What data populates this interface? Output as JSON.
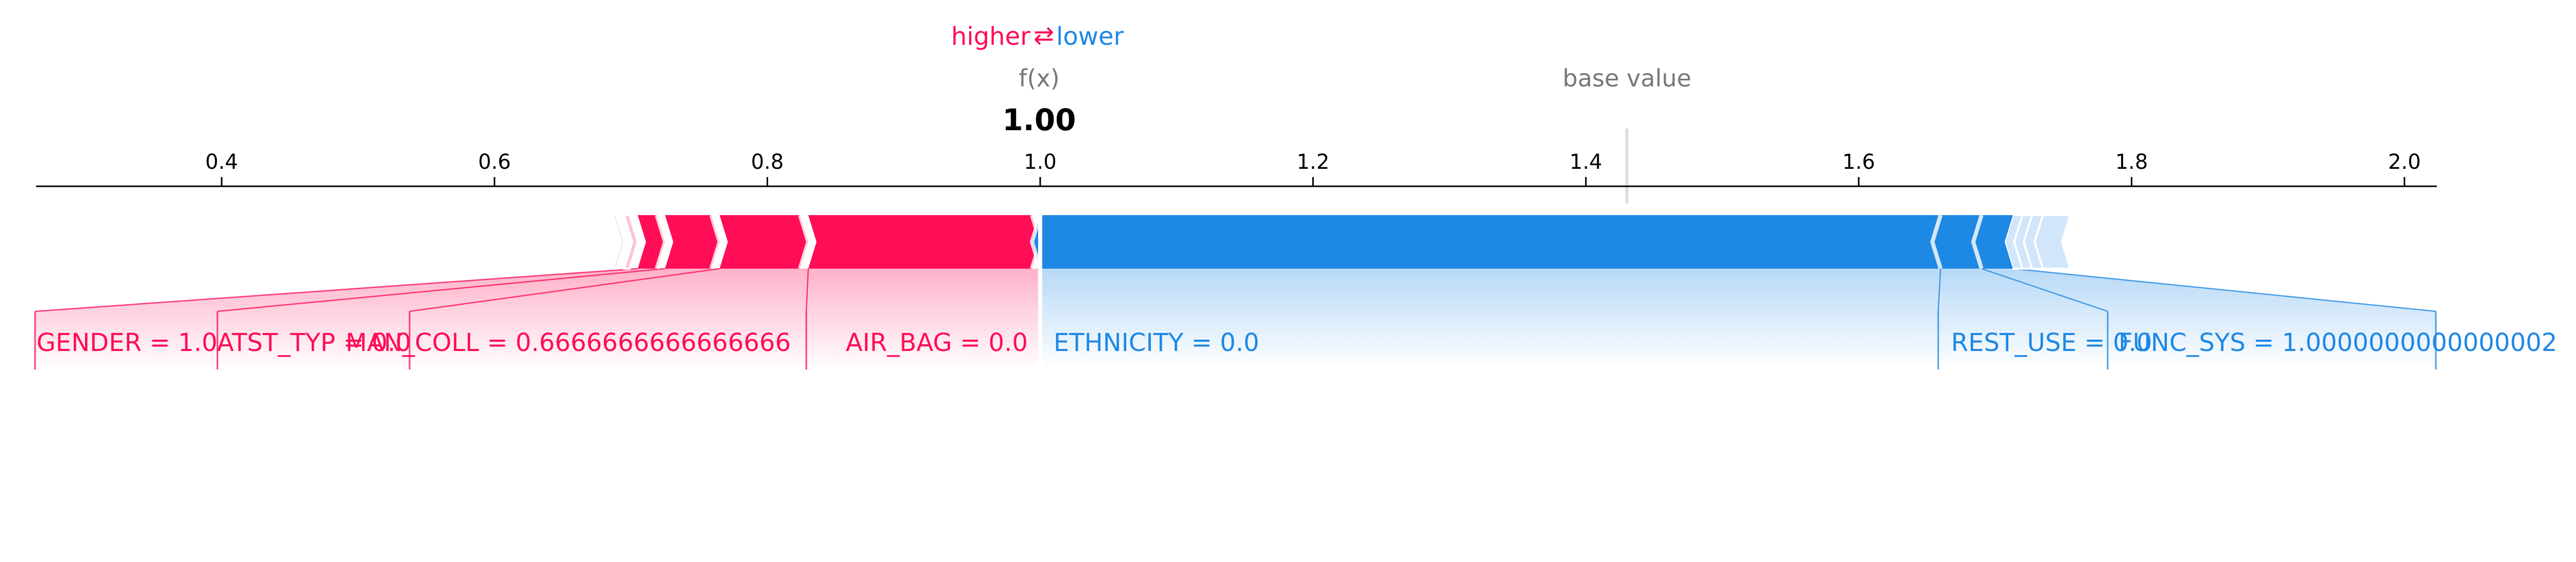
{
  "colors": {
    "higher": "#ff0d57",
    "lower": "#1e88e5",
    "axis": "#000000",
    "muted": "#777777",
    "higher_fill": "#ffc3d5",
    "lower_fill": "#d1e6fa"
  },
  "legend": {
    "higher": "higher",
    "arrows": "⇄",
    "lower": "lower"
  },
  "chart_data": {
    "type": "force_plot",
    "fx_label": "f(x)",
    "fx_value": 1.0,
    "fx_text": "1.00",
    "base_value_label": "base value",
    "base_value": 1.43,
    "xlim": [
      0.265,
      2.02
    ],
    "ticks": [
      0.4,
      0.6,
      0.8,
      1.0,
      1.2,
      1.4,
      1.6,
      1.8,
      2.0
    ],
    "tick_labels": [
      "0.4",
      "0.6",
      "0.8",
      "1.0",
      "1.2",
      "1.4",
      "1.6",
      "1.8",
      "2.0"
    ],
    "features_higher": [
      {
        "label": "AIR_BAG = 0.0",
        "start": 0.83,
        "end": 1.0
      },
      {
        "label": "MAN_COLL = 0.6666666666666666",
        "start": 0.765,
        "end": 0.83
      },
      {
        "label": "ATST_TYP = 0.0",
        "start": 0.725,
        "end": 0.765
      },
      {
        "label": "GENDER = 1.0",
        "start": 0.705,
        "end": 0.725
      }
    ],
    "features_higher_minor": [
      {
        "start": 0.695,
        "end": 0.705
      },
      {
        "start": 0.687,
        "end": 0.695
      },
      {
        "start": 0.68,
        "end": 0.687
      },
      {
        "start": 0.673,
        "end": 0.68
      }
    ],
    "features_lower": [
      {
        "label": "ETHNICITY  = 0.0",
        "start": 1.0,
        "end": 1.66
      },
      {
        "label": "REST_USE = 0.0",
        "start": 1.66,
        "end": 1.69
      },
      {
        "label": "FUNC_SYS = 1.0000000000000002",
        "start": 1.69,
        "end": 1.713
      }
    ],
    "features_lower_minor": [
      {
        "start": 1.713,
        "end": 1.72
      },
      {
        "start": 1.72,
        "end": 1.727
      },
      {
        "start": 1.727,
        "end": 1.735
      },
      {
        "start": 1.735,
        "end": 1.755
      }
    ]
  }
}
